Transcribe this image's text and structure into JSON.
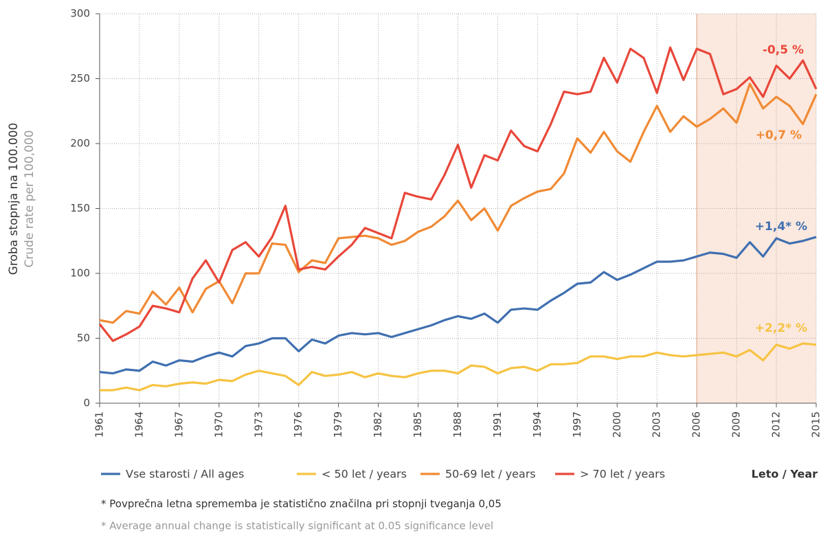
{
  "chart_data": {
    "type": "line",
    "y_label": [
      "Groba stopnja na 100.000",
      "Crude rate per 100,000"
    ],
    "x_label": "Leto / Year",
    "footnotes": [
      "* Povprečna letna sprememba je statistično značilna pri stopnji tveganja 0,05",
      "* Average annual change is statistically significant at 0.05 significance level"
    ],
    "highlight": [
      2006,
      2015
    ],
    "highlight_color": "#fbe8de",
    "grid": true,
    "x": [
      1961,
      1962,
      1963,
      1964,
      1965,
      1966,
      1967,
      1968,
      1969,
      1970,
      1971,
      1972,
      1973,
      1974,
      1975,
      1976,
      1977,
      1978,
      1979,
      1980,
      1981,
      1982,
      1983,
      1984,
      1985,
      1986,
      1987,
      1988,
      1989,
      1990,
      1991,
      1992,
      1993,
      1994,
      1995,
      1996,
      1997,
      1998,
      1999,
      2000,
      2001,
      2002,
      2003,
      2004,
      2005,
      2006,
      2007,
      2008,
      2009,
      2010,
      2011,
      2012,
      2013,
      2014,
      2015
    ],
    "xlim": [
      1961,
      2015
    ],
    "xticks": [
      1961,
      1964,
      1967,
      1970,
      1973,
      1976,
      1979,
      1982,
      1985,
      1988,
      1991,
      1994,
      1997,
      2000,
      2003,
      2006,
      2009,
      2012,
      2015
    ],
    "ylim": [
      0,
      300
    ],
    "yticks": [
      0,
      50,
      100,
      150,
      200,
      250,
      300
    ],
    "series": [
      {
        "name": "Vse starosti / All ages",
        "color": "#3f6fb0",
        "label": "+1,4* %",
        "values": [
          24,
          23,
          26,
          25,
          32,
          29,
          33,
          32,
          36,
          39,
          36,
          44,
          46,
          50,
          50,
          40,
          49,
          46,
          52,
          54,
          53,
          54,
          51,
          54,
          57,
          60,
          64,
          67,
          65,
          69,
          62,
          72,
          73,
          72,
          79,
          85,
          92,
          93,
          101,
          95,
          99,
          104,
          109,
          109,
          110,
          113,
          116,
          115,
          112,
          124,
          113,
          127,
          123,
          125,
          128
        ]
      },
      {
        "name": "< 50 let / years",
        "color": "#f6c342",
        "label": "+2,2* %",
        "values": [
          10,
          10,
          12,
          10,
          14,
          13,
          15,
          16,
          15,
          18,
          17,
          22,
          25,
          23,
          21,
          14,
          24,
          21,
          22,
          24,
          20,
          23,
          21,
          20,
          23,
          25,
          25,
          23,
          29,
          28,
          23,
          27,
          28,
          25,
          30,
          30,
          31,
          36,
          36,
          34,
          36,
          36,
          39,
          37,
          36,
          37,
          38,
          39,
          36,
          41,
          33,
          45,
          42,
          46,
          45
        ]
      },
      {
        "name": "50-69 let / years",
        "color": "#f08a34",
        "label": "+0,7 %",
        "values": [
          64,
          62,
          71,
          69,
          86,
          76,
          89,
          70,
          88,
          94,
          77,
          100,
          100,
          123,
          122,
          101,
          110,
          108,
          127,
          128,
          129,
          127,
          122,
          125,
          132,
          136,
          144,
          156,
          141,
          150,
          133,
          152,
          158,
          163,
          165,
          177,
          204,
          193,
          209,
          194,
          186,
          209,
          229,
          209,
          221,
          213,
          219,
          227,
          216,
          246,
          227,
          236,
          229,
          215,
          238
        ]
      },
      {
        "name": "> 70 let / years",
        "color": "#e8473a",
        "label": "-0,5 %",
        "values": [
          61,
          48,
          53,
          59,
          75,
          73,
          70,
          96,
          110,
          93,
          118,
          124,
          113,
          128,
          152,
          103,
          105,
          103,
          113,
          122,
          135,
          131,
          127,
          162,
          159,
          157,
          176,
          199,
          166,
          191,
          187,
          210,
          198,
          194,
          215,
          240,
          238,
          240,
          266,
          247,
          273,
          266,
          239,
          274,
          249,
          273,
          269,
          238,
          242,
          251,
          236,
          260,
          250,
          264,
          242
        ]
      }
    ]
  }
}
